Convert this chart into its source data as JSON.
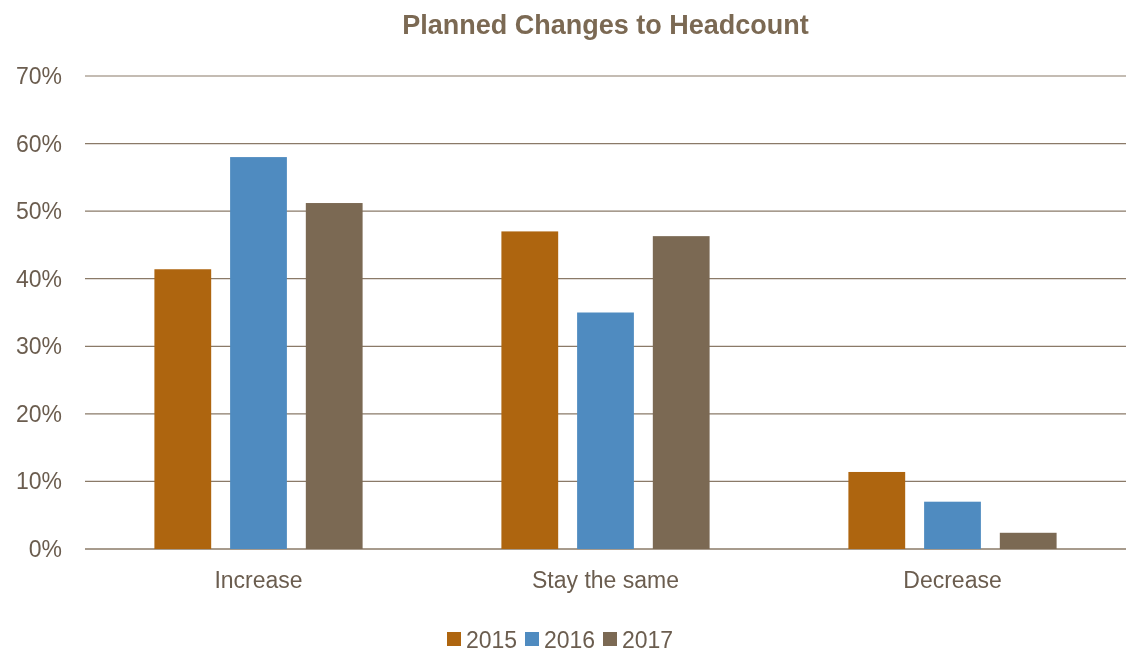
{
  "chart_data": {
    "type": "bar",
    "title": "Planned Changes to Headcount",
    "categories": [
      "Increase",
      "Stay the same",
      "Decrease"
    ],
    "series": [
      {
        "name": "2015",
        "color": "#ae650f",
        "values": [
          41.4,
          47,
          11.4
        ]
      },
      {
        "name": "2016",
        "color": "#4f8bc0",
        "values": [
          58,
          35,
          7
        ]
      },
      {
        "name": "2017",
        "color": "#7b6953",
        "values": [
          51.2,
          46.3,
          2.4
        ]
      }
    ],
    "ylim": [
      0,
      70
    ],
    "yticks": [
      {
        "value": 0,
        "label": "0%"
      },
      {
        "value": 10,
        "label": "10%"
      },
      {
        "value": 20,
        "label": "20%"
      },
      {
        "value": 30,
        "label": "30%"
      },
      {
        "value": 40,
        "label": "40%"
      },
      {
        "value": 50,
        "label": "50%"
      },
      {
        "value": 60,
        "label": "60%"
      },
      {
        "value": 70,
        "label": "70%"
      }
    ],
    "grid": "y",
    "legend": "bottom"
  }
}
